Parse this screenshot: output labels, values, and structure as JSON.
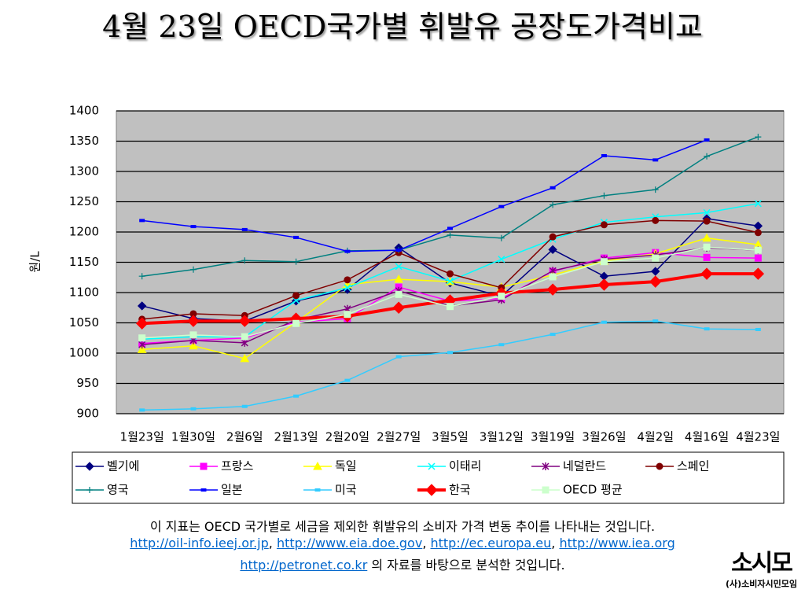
{
  "chart_data": {
    "type": "line",
    "title": "4월 23일 OECD국가별 휘발유 공장도가격비교",
    "y_label": "원/L",
    "categories": [
      "1월23일",
      "1월30일",
      "2월6일",
      "2월13일",
      "2월20일",
      "2월27일",
      "3월5일",
      "3월12일",
      "3월19일",
      "3월26일",
      "4월2일",
      "4월16일",
      "4월23일"
    ],
    "ylim": [
      900,
      1400
    ],
    "yticks": [
      900,
      950,
      1000,
      1050,
      1100,
      1150,
      1200,
      1250,
      1300,
      1350,
      1400
    ],
    "grid": true,
    "background": "#c0c0c0",
    "series": [
      {
        "name": "벨기에",
        "color": "#000080",
        "marker": "diamond",
        "values": [
          1078,
          1057,
          1053,
          1086,
          1105,
          1174,
          1116,
          1094,
          1171,
          1127,
          1135,
          1222,
          1210
        ]
      },
      {
        "name": "프랑스",
        "color": "#ff00ff",
        "marker": "square",
        "values": [
          1016,
          1021,
          1025,
          1051,
          1057,
          1109,
          1086,
          1090,
          1135,
          1157,
          1166,
          1158,
          1157
        ]
      },
      {
        "name": "독일",
        "color": "#ffff00",
        "marker": "triangle",
        "values": [
          1006,
          1012,
          991,
          1051,
          1113,
          1122,
          1118,
          1109,
          1129,
          1152,
          1164,
          1190,
          1179
        ]
      },
      {
        "name": "이태리",
        "color": "#00ffff",
        "marker": "x",
        "values": [
          1023,
          1027,
          1027,
          1087,
          1108,
          1143,
          1119,
          1155,
          1188,
          1216,
          1225,
          1232,
          1247
        ]
      },
      {
        "name": "네덜란드",
        "color": "#800080",
        "marker": "star",
        "values": [
          1014,
          1021,
          1017,
          1055,
          1073,
          1103,
          1078,
          1088,
          1136,
          1155,
          1162,
          1174,
          1170
        ]
      },
      {
        "name": "스페인",
        "color": "#800000",
        "marker": "circle",
        "values": [
          1056,
          1065,
          1062,
          1095,
          1121,
          1166,
          1131,
          1108,
          1192,
          1212,
          1219,
          1218,
          1199
        ]
      },
      {
        "name": "영국",
        "color": "#008080",
        "marker": "plus",
        "values": [
          1127,
          1138,
          1153,
          1151,
          1169,
          1170,
          1195,
          1190,
          1245,
          1260,
          1270,
          1325,
          1357
        ]
      },
      {
        "name": "일본",
        "color": "#0000ff",
        "marker": "dash",
        "values": [
          1219,
          1209,
          1204,
          1191,
          1168,
          1170,
          1206,
          1242,
          1273,
          1326,
          1319,
          1352,
          null
        ]
      },
      {
        "name": "미국",
        "color": "#33ccff",
        "marker": "dash",
        "values": [
          906,
          908,
          912,
          929,
          955,
          994,
          1001,
          1014,
          1031,
          1051,
          1053,
          1040,
          1039
        ]
      },
      {
        "name": "한국",
        "color": "#ff0000",
        "marker": "diamond",
        "width": 4,
        "values": [
          1049,
          1053,
          1053,
          1057,
          1061,
          1075,
          1087,
          1099,
          1105,
          1113,
          1118,
          1131,
          1131
        ]
      },
      {
        "name": "OECD 평균",
        "color": "#ccffcc",
        "marker": "square",
        "values": [
          1025,
          1030,
          1027,
          1049,
          1064,
          1097,
          1077,
          1094,
          1126,
          1151,
          1157,
          1175,
          1170
        ]
      }
    ]
  },
  "footer": {
    "line1": "이 지표는 OECD 국가별로 세금을 제외한 휘발유의 소비자 가격 변동 추이를 나타내는 것입니다.",
    "line2": [
      {
        "text": "http://oil-info.ieej.or.jp",
        "link": true
      },
      {
        "text": ", "
      },
      {
        "text": "http://www.eia.doe.gov",
        "link": true
      },
      {
        "text": ", "
      },
      {
        "text": "http://ec.europa.eu",
        "link": true
      },
      {
        "text": ", "
      },
      {
        "text": "http://www.iea.org",
        "link": true
      }
    ],
    "line3": [
      {
        "text": "http://petronet.co.kr",
        "link": true
      },
      {
        "text": " 의 자료를 바탕으로 분석한 것입니다."
      }
    ]
  },
  "logo": {
    "mark": "소시모",
    "name": "(사)소비자시민모임"
  }
}
